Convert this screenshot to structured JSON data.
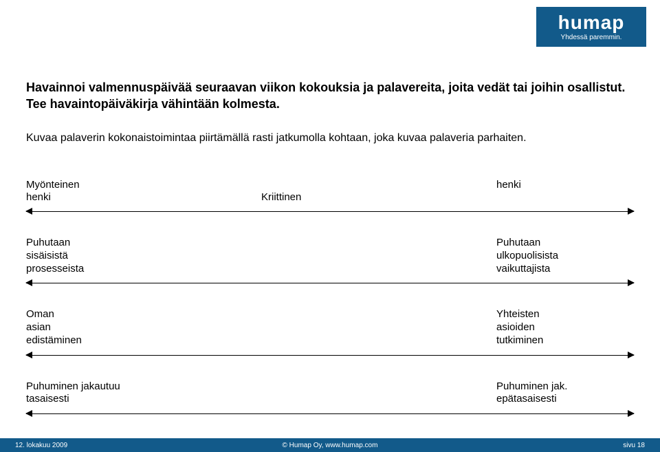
{
  "logo": {
    "main": "humap",
    "sub": "Yhdessä paremmin."
  },
  "heading": {
    "line1": "Havainnoi valmennuspäivää seuraavan viikon kokouksia ja palavereita, joita vedät tai joihin osallistut.",
    "line2": "Tee havaintopäiväkirja vähintään kolmesta."
  },
  "heading2": "Kuvaa palaverin kokonaistoimintaa piirtämällä rasti jatkumolla kohtaan, joka kuvaa palaveria parhaiten.",
  "axes": [
    {
      "left": "Myönteinen\nhenki",
      "mid": "Kriittinen",
      "right": "henki"
    },
    {
      "left": "Puhutaan\nsisäisistä\nprosesseista",
      "mid": "",
      "right": "Puhutaan\nulkopuolisista\nvaikuttajista"
    },
    {
      "left": "Oman\nasian\nedistäminen",
      "mid": "",
      "right": "Yhteisten\nasioiden\ntutkiminen"
    },
    {
      "left": "Puhuminen jakautuu\ntasaisesti",
      "mid": "",
      "right": "Puhuminen jak.\nepätasaisesti"
    }
  ],
  "footer": {
    "left": "12. lokakuu 2009",
    "mid": "© Humap Oy, www.humap.com",
    "right": "sivu 18"
  },
  "colors": {
    "brand": "#125a8a",
    "text": "#000000",
    "bg": "#ffffff"
  }
}
